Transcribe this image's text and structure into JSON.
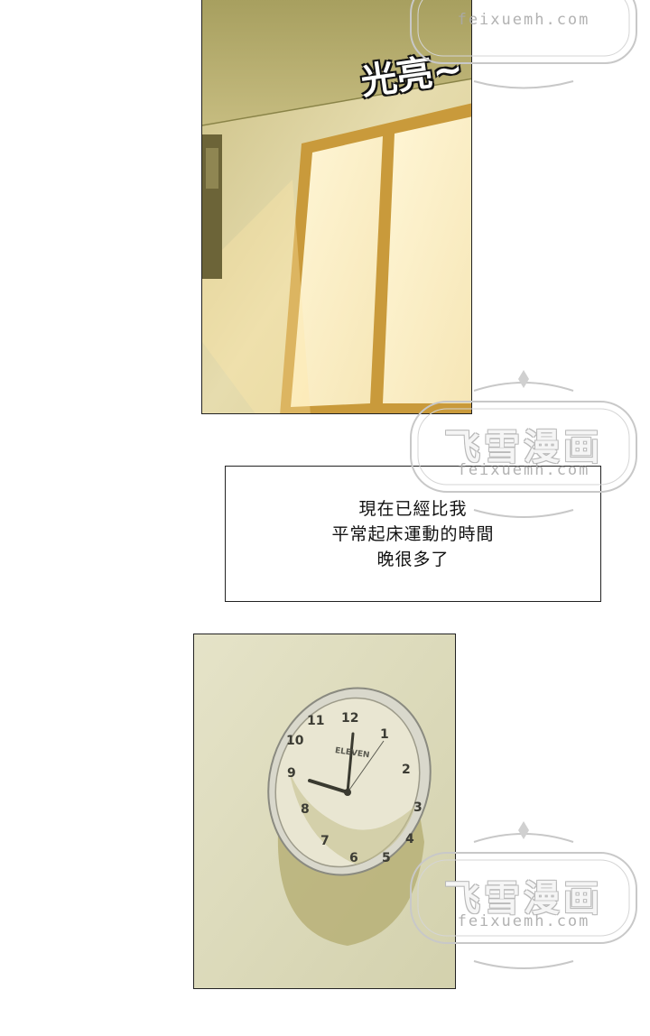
{
  "panels": {
    "window": {
      "sfx": "光亮~"
    },
    "caption": {
      "lines": [
        "現在已經比我",
        "平常起床運動的時間",
        "晚很多了"
      ]
    },
    "clock": {
      "brand": "ELEVEN",
      "numerals": [
        "12",
        "1",
        "2",
        "3",
        "4",
        "5",
        "6",
        "7",
        "8",
        "9",
        "10",
        "11"
      ]
    }
  },
  "watermark": {
    "title": "飞雪漫画",
    "url": "feixuemh.com"
  },
  "colors": {
    "wall_warm": "#e3d9a6",
    "window_frame": "#c99a3b",
    "clock_wall": "#e2e0c1"
  }
}
